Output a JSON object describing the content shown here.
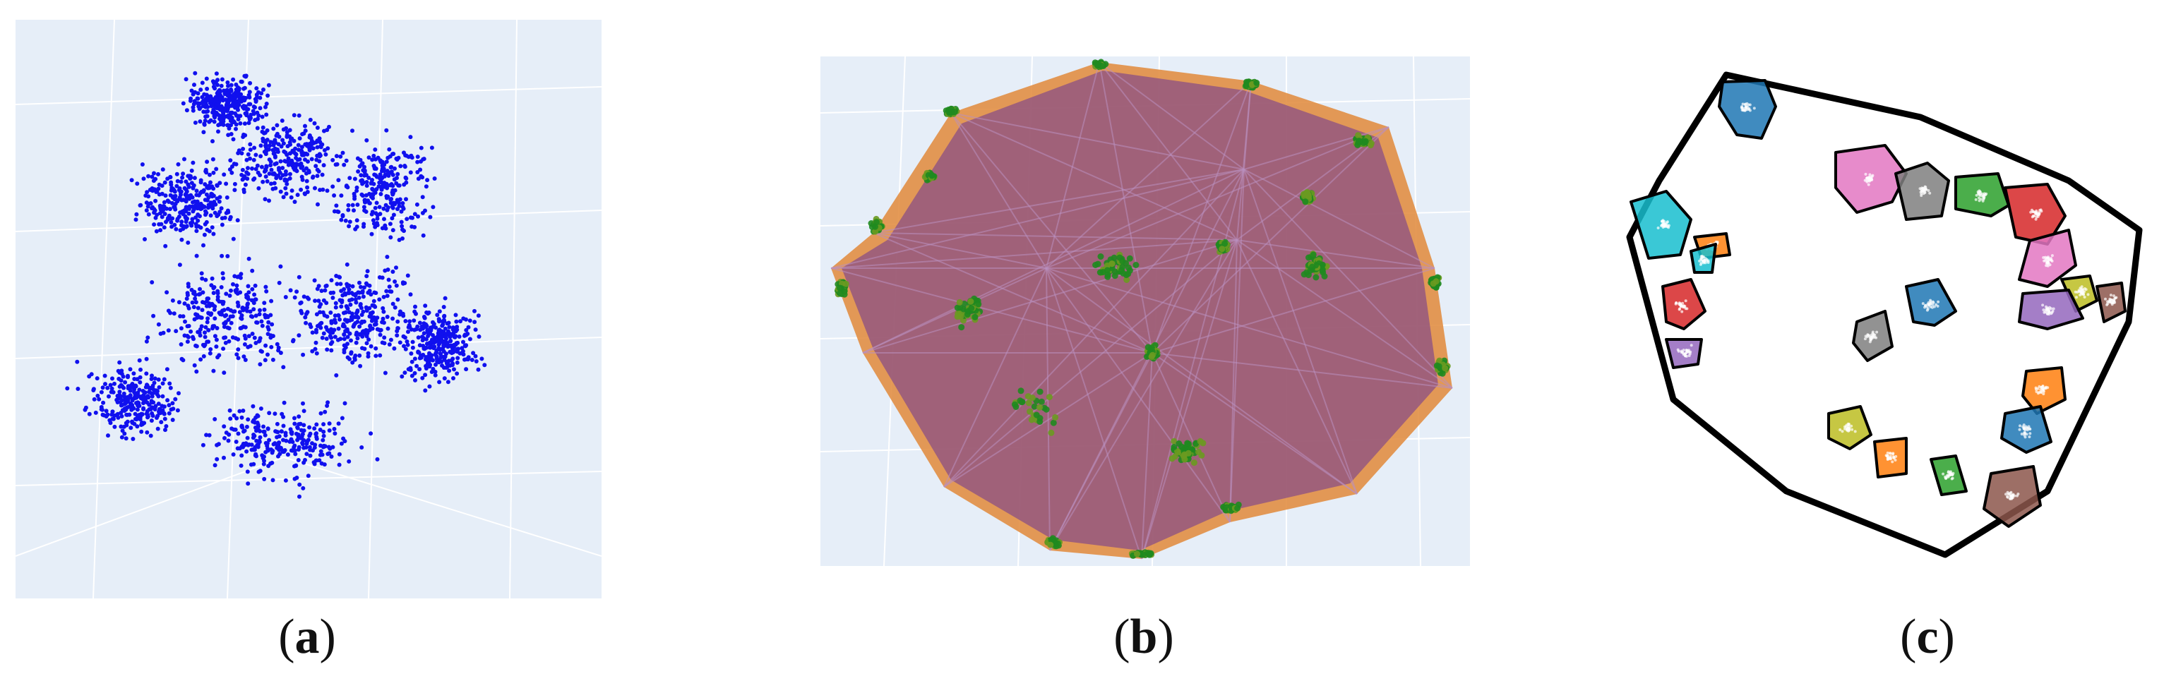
{
  "panels": [
    {
      "id": "a",
      "caption_open": "(",
      "caption_letter": "a",
      "caption_close": ")"
    },
    {
      "id": "b",
      "caption_open": "(",
      "caption_letter": "b",
      "caption_close": ")"
    },
    {
      "id": "c",
      "caption_open": "(",
      "caption_letter": "c",
      "caption_close": ")"
    }
  ],
  "colors": {
    "pane_bg": "#e6eef8",
    "grid": "#ffffff",
    "points_a": "#1010ee",
    "hull_fill": "#e0883a",
    "hull_inner": "#8a4f86",
    "hull_points": "#1f8a1f",
    "outline": "#000000",
    "cluster_palette": [
      "#1f77b4",
      "#e377c2",
      "#7f7f7f",
      "#2ca02c",
      "#d62728",
      "#17becf",
      "#ff7f0e",
      "#9467bd",
      "#bcbd22",
      "#8c564b"
    ]
  }
}
